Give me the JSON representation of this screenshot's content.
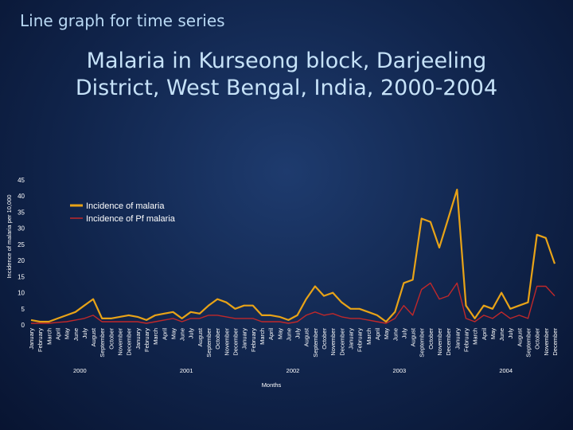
{
  "slide": {
    "heading": "Line graph for time series"
  },
  "chart_data": {
    "type": "line",
    "title_lines": [
      "Malaria in Kurseong block, Darjeeling",
      "District, West Bengal, India, 2000-2004"
    ],
    "xlabel": "Months",
    "ylabel": "Incidence of malaria per 10,000",
    "ylim": [
      0,
      45
    ],
    "yticks": [
      0,
      5,
      10,
      15,
      20,
      25,
      30,
      35,
      40,
      45
    ],
    "years": [
      "2000",
      "2001",
      "2002",
      "2003",
      "2004"
    ],
    "months": [
      "January",
      "February",
      "March",
      "April",
      "May",
      "June",
      "July",
      "August",
      "September",
      "October",
      "November",
      "December"
    ],
    "series": [
      {
        "name": "Incidence of malaria",
        "color": "#e8a317",
        "values": [
          1.5,
          1,
          1,
          2,
          3,
          4,
          6,
          8,
          2,
          2,
          2.5,
          3,
          2.5,
          1.5,
          3,
          3.5,
          4,
          2,
          4,
          3.5,
          6,
          8,
          7,
          5,
          6,
          6,
          3,
          3,
          2.5,
          1.5,
          3,
          8,
          12,
          9,
          10,
          7,
          5,
          5,
          4,
          3,
          1,
          4,
          13,
          14,
          33,
          32,
          24,
          33,
          42,
          6,
          2,
          6,
          5,
          10,
          5,
          6,
          7,
          28,
          27,
          19
        ]
      },
      {
        "name": "Incidence of Pf malaria",
        "color": "#c0282a",
        "values": [
          0.5,
          0.5,
          0.5,
          0.8,
          1,
          1.5,
          2,
          3,
          1,
          1,
          1,
          1,
          1,
          0.5,
          1,
          1.5,
          2,
          1,
          2,
          2,
          3,
          3,
          2.5,
          2,
          2,
          2,
          1,
          1,
          1,
          0.5,
          1,
          3,
          4,
          3,
          3.5,
          2.5,
          2,
          2,
          1.5,
          1,
          0.5,
          2,
          6,
          3,
          11,
          13,
          8,
          9,
          13,
          2,
          1,
          3,
          2,
          4,
          2,
          3,
          2,
          12,
          12,
          9
        ]
      }
    ]
  }
}
